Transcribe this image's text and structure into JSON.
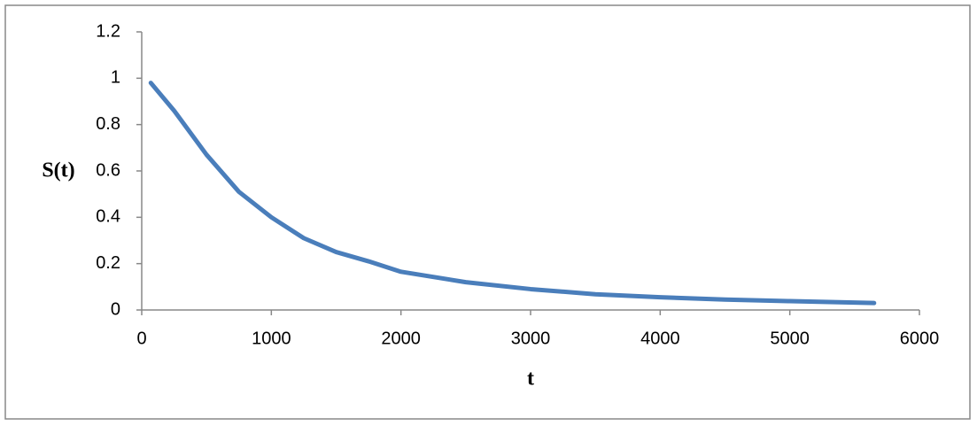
{
  "chart_data": {
    "type": "line",
    "x_label": "t",
    "y_label": "S(t)",
    "series": [
      {
        "name": "S(t)",
        "color": "#4a7ebb",
        "x": [
          70,
          250,
          500,
          750,
          1000,
          1250,
          1500,
          1750,
          2000,
          2500,
          3000,
          3500,
          4000,
          4500,
          5000,
          5650
        ],
        "values": [
          0.98,
          0.86,
          0.67,
          0.51,
          0.4,
          0.31,
          0.25,
          0.21,
          0.165,
          0.12,
          0.09,
          0.068,
          0.055,
          0.045,
          0.038,
          0.03
        ]
      }
    ],
    "xlim": [
      0,
      6000
    ],
    "xticks": [
      0,
      1000,
      2000,
      3000,
      4000,
      5000,
      6000
    ],
    "ylim": [
      0,
      1.2
    ],
    "yticks": [
      0,
      0.2,
      0.4,
      0.6,
      0.8,
      1,
      1.2
    ],
    "grid": false
  }
}
